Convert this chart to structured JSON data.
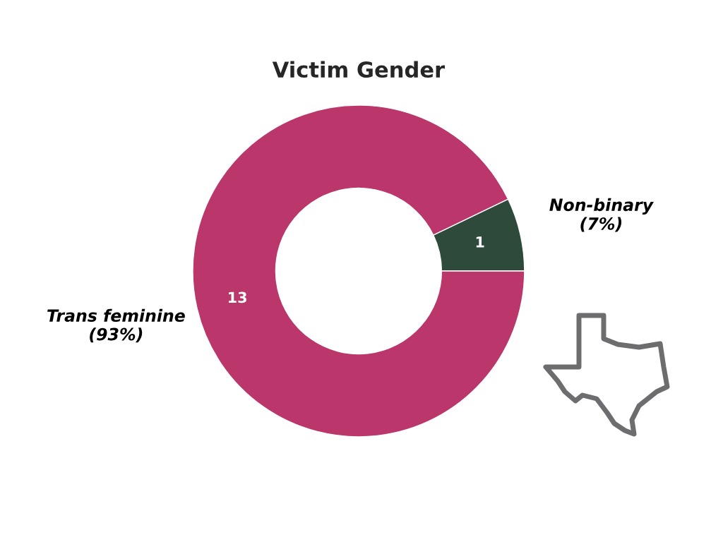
{
  "chart_data": {
    "type": "donut",
    "title": "Victim Gender",
    "categories": [
      "Non-binary",
      "Trans feminine"
    ],
    "values": [
      1,
      13
    ],
    "colors": [
      "#2d4a3a",
      "#bb366b"
    ],
    "data_labels": true,
    "annotations": [
      "(7%)",
      "(93%)"
    ]
  }
}
